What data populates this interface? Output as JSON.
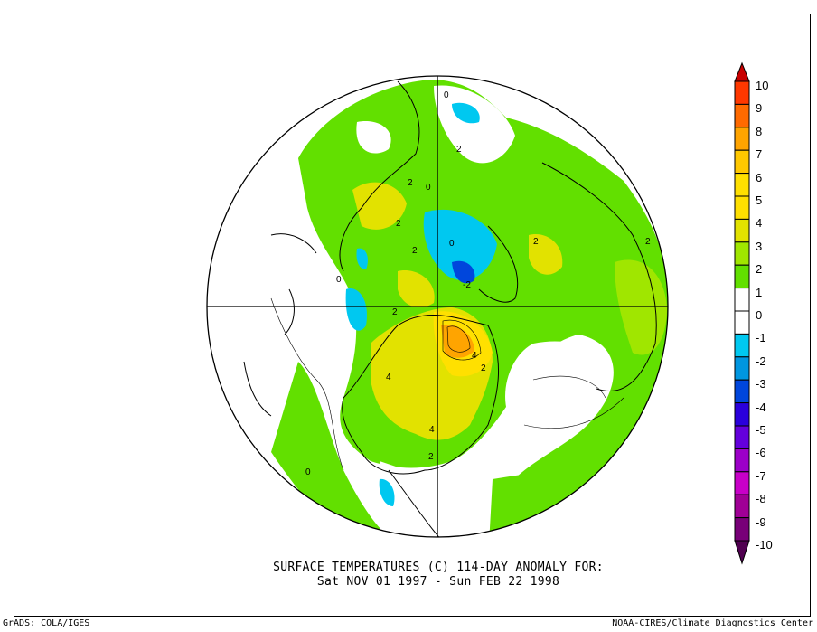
{
  "title": {
    "line1": "SURFACE TEMPERATURES (C)   114-DAY ANOMALY FOR:",
    "line2": "Sat NOV 01 1997 - Sun FEB 22 1998"
  },
  "footer": {
    "left": "GrADS: COLA/IGES",
    "right": "NOAA-CIRES/Climate Diagnostics Center"
  },
  "map": {
    "projection": "north-polar-stereographic",
    "contour_labels": [
      "0",
      "2",
      "0",
      "2",
      "2",
      "2",
      "0",
      "0",
      "2",
      "4",
      "4",
      "2",
      "4",
      "2",
      "-2",
      "2",
      "2",
      "0"
    ]
  },
  "colorbar": {
    "labels": [
      "10",
      "9",
      "8",
      "7",
      "6",
      "5",
      "4",
      "3",
      "2",
      "1",
      "0",
      "-1",
      "-2",
      "-3",
      "-4",
      "-5",
      "-6",
      "-7",
      "-8",
      "-9",
      "-10"
    ],
    "top_arrow_color": "#c80000",
    "bottom_arrow_color": "#500050",
    "colors": [
      "#ff3800",
      "#ff6a00",
      "#ffa400",
      "#ffc800",
      "#ffe000",
      "#ffe000",
      "#e2e200",
      "#a0e600",
      "#62e000",
      "#ffffff",
      "#ffffff",
      "#00c8f0",
      "#0096e0",
      "#0046dc",
      "#2a00dc",
      "#6400dc",
      "#9c00c8",
      "#c800c8",
      "#a00096",
      "#780078"
    ]
  }
}
